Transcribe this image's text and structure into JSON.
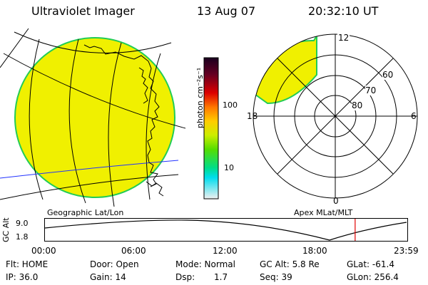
{
  "header": {
    "instrument": "Ultraviolet Imager",
    "date": "13 Aug 07",
    "time": "20:32:10 UT"
  },
  "colorbar": {
    "unit_label": "photon cm⁻²s⁻¹",
    "ticks": [
      "100",
      "10"
    ]
  },
  "polar": {
    "lat_labels": [
      "60",
      "70",
      "80"
    ],
    "mlt_labels": [
      "12",
      "18",
      "6",
      "0"
    ]
  },
  "panel_labels": {
    "left": "Geographic Lat/Lon",
    "right": "Apex MLat/MLT"
  },
  "altitude_plot": {
    "y_label": "GC Alt",
    "y_ticks": [
      "9.0",
      "1.8"
    ],
    "x_ticks": [
      "00:00",
      "06:00",
      "12:00",
      "18:00",
      "23:59"
    ],
    "current_time_fraction": 0.856
  },
  "info": {
    "flt": "Flt: HOME",
    "ip": "IP: 36.0",
    "door": "Door: Open",
    "gain": "Gain: 14",
    "mode": "Mode: Normal",
    "dsp_label": "Dsp:",
    "dsp_value": "1.7",
    "gc_alt": "GC Alt: 5.8 Re",
    "seq": "Seq: 39",
    "glat": "GLat: -61.4",
    "glon": "GLon: 256.4"
  },
  "colors": {
    "image_fill": "#f0f000",
    "image_edge": "#22cc55",
    "coastline": "#000000",
    "equator_line": "#2233ff",
    "time_marker": "#e00000"
  }
}
